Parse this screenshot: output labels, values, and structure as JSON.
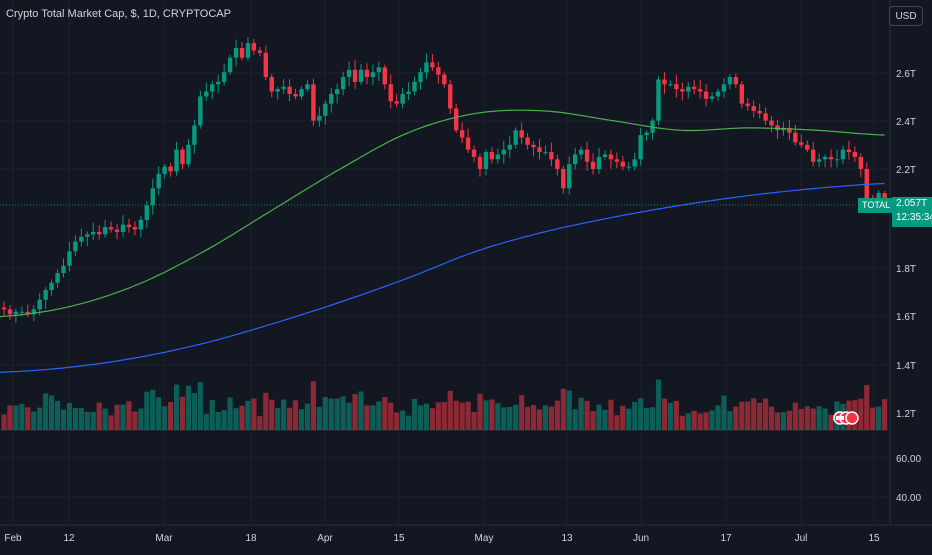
{
  "header": {
    "title": "Crypto Total Market Cap, $, 1D, CRYPTOCAP",
    "currency_button": "USD"
  },
  "price_label": {
    "symbol": "TOTAL",
    "value": "2.057T",
    "countdown": "12:35:34"
  },
  "colors": {
    "background": "#131722",
    "up": "#089981",
    "down": "#f23645",
    "ma_green": "#4caf50",
    "ma_blue": "#2962ff",
    "grid": "#1e222d",
    "text": "#d1d4dc"
  },
  "chart_data": {
    "type": "candlestick",
    "title": "Crypto Total Market Cap, $, 1D, CRYPTOCAP",
    "y_axis_price": {
      "ticks": [
        "2.6T",
        "2.4T",
        "2.2T",
        "1.8T",
        "1.6T",
        "1.4T",
        "1.2T"
      ],
      "scale": "log"
    },
    "y_axis_volume": {
      "ticks": [
        "60.00",
        "40.00"
      ]
    },
    "x_axis": {
      "ticks": [
        "Feb",
        "12",
        "Mar",
        "18",
        "Apr",
        "15",
        "May",
        "13",
        "Jun",
        "17",
        "Jul",
        "15"
      ]
    },
    "last_price": 2.057,
    "close_series_T": [
      1.62,
      1.6,
      1.61,
      1.61,
      1.6,
      1.62,
      1.66,
      1.7,
      1.73,
      1.77,
      1.8,
      1.86,
      1.9,
      1.92,
      1.93,
      1.94,
      1.93,
      1.96,
      1.95,
      1.94,
      1.97,
      1.96,
      1.95,
      1.99,
      2.05,
      2.12,
      2.18,
      2.21,
      2.19,
      2.28,
      2.22,
      2.3,
      2.38,
      2.5,
      2.52,
      2.55,
      2.56,
      2.6,
      2.66,
      2.7,
      2.66,
      2.72,
      2.69,
      2.68,
      2.58,
      2.52,
      2.53,
      2.54,
      2.51,
      2.5,
      2.53,
      2.55,
      2.4,
      2.42,
      2.47,
      2.51,
      2.53,
      2.58,
      2.61,
      2.56,
      2.61,
      2.58,
      2.6,
      2.62,
      2.55,
      2.48,
      2.47,
      2.51,
      2.52,
      2.56,
      2.6,
      2.64,
      2.62,
      2.59,
      2.55,
      2.45,
      2.36,
      2.33,
      2.28,
      2.25,
      2.2,
      2.27,
      2.24,
      2.26,
      2.28,
      2.3,
      2.36,
      2.33,
      2.3,
      2.29,
      2.27,
      2.27,
      2.24,
      2.2,
      2.12,
      2.22,
      2.26,
      2.28,
      2.23,
      2.2,
      2.25,
      2.26,
      2.24,
      2.23,
      2.21,
      2.21,
      2.24,
      2.34,
      2.35,
      2.4,
      2.57,
      2.55,
      2.55,
      2.53,
      2.52,
      2.54,
      2.53,
      2.52,
      2.49,
      2.5,
      2.52,
      2.55,
      2.58,
      2.55,
      2.47,
      2.46,
      2.44,
      2.43,
      2.4,
      2.38,
      2.36,
      2.37,
      2.35,
      2.31,
      2.3,
      2.28,
      2.23,
      2.24,
      2.25,
      2.24,
      2.24,
      2.28,
      2.27,
      2.25,
      2.2,
      2.08,
      2.06,
      2.1,
      2.057
    ],
    "series": [
      {
        "name": "",
        "type": "line",
        "note": "medium MA",
        "color": "#4caf50",
        "values_T": [
          1.59,
          1.63,
          1.72,
          1.86,
          2.03,
          2.2,
          2.35,
          2.43,
          2.44,
          2.4,
          2.36,
          2.37,
          2.36,
          2.34
        ]
      },
      {
        "name": "",
        "type": "line",
        "note": "long MA",
        "color": "#2962ff",
        "values_T": [
          1.36,
          1.38,
          1.42,
          1.48,
          1.56,
          1.65,
          1.75,
          1.86,
          1.94,
          2.0,
          2.05,
          2.09,
          2.12,
          2.14
        ]
      }
    ],
    "volume_panel": true,
    "grid": true
  }
}
